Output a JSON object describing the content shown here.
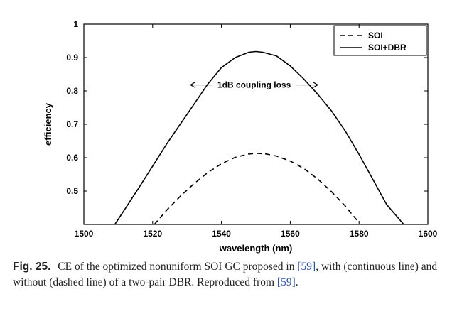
{
  "chart_data": {
    "type": "line",
    "title": "",
    "xlabel": "wavelength (nm)",
    "ylabel": "efficiency",
    "xlim": [
      1500,
      1600
    ],
    "ylim": [
      0.4,
      1.0
    ],
    "xticks": [
      1500,
      1520,
      1540,
      1560,
      1580,
      1600
    ],
    "yticks": [
      0.5,
      0.6,
      0.7,
      0.8,
      0.9,
      1
    ],
    "ytick_labels": [
      "0.5",
      "0.6",
      "0.7",
      "0.8",
      "0.9",
      "1"
    ],
    "grid": false,
    "legend_position": "top-right",
    "series": [
      {
        "name": "SOI",
        "style": "dashed",
        "x": [
          1520.5,
          1524,
          1528,
          1532,
          1536,
          1540,
          1544,
          1548,
          1550.5,
          1553,
          1556,
          1560,
          1564,
          1568,
          1572,
          1576,
          1580
        ],
        "y": [
          0.4,
          0.442,
          0.484,
          0.522,
          0.555,
          0.582,
          0.601,
          0.611,
          0.613,
          0.611,
          0.605,
          0.59,
          0.567,
          0.536,
          0.498,
          0.455,
          0.405
        ]
      },
      {
        "name": "SOI+DBR",
        "style": "solid",
        "x": [
          1509,
          1512,
          1516,
          1520,
          1524,
          1528,
          1532,
          1536,
          1540,
          1544,
          1548,
          1550,
          1552,
          1556,
          1560,
          1564,
          1568,
          1572,
          1576,
          1580,
          1584,
          1588,
          1593
        ],
        "y": [
          0.4,
          0.447,
          0.51,
          0.575,
          0.64,
          0.7,
          0.76,
          0.82,
          0.87,
          0.9,
          0.916,
          0.918,
          0.916,
          0.905,
          0.875,
          0.835,
          0.79,
          0.74,
          0.68,
          0.61,
          0.535,
          0.46,
          0.4
        ]
      }
    ],
    "annotations": [
      {
        "text": "1dB coupling loss",
        "x_from": 1531,
        "x_to": 1568,
        "y": 0.818
      }
    ]
  },
  "caption": {
    "figure_label": "Fig. 25.",
    "text_1": "CE of the optimized nonuniform SOI GC proposed in",
    "ref_1": "[59]",
    "text_2": ", with (continuous line) and without (dashed line) of a two-pair DBR. Reproduced from ",
    "ref_2": "[59]",
    "text_3": "."
  }
}
